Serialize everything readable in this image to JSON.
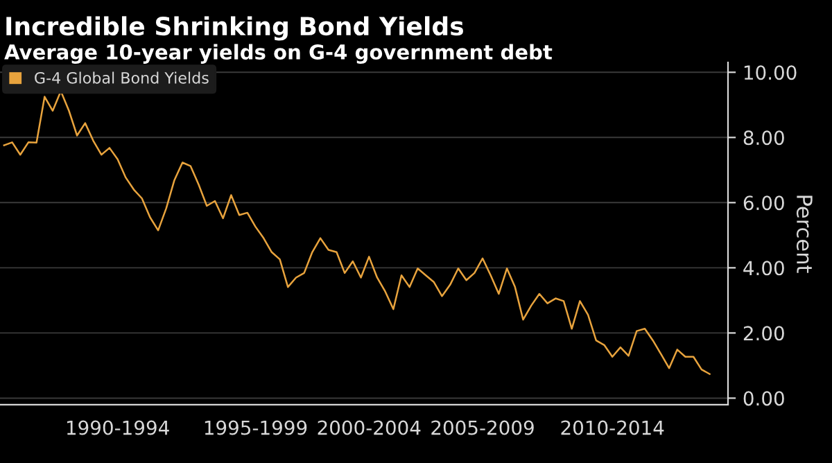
{
  "chart_data": {
    "type": "line",
    "title": "Incredible Shrinking Bond Yields",
    "subtitle": "Average 10-year yields on G-4 government debt",
    "ylabel": "Percent",
    "categories": [
      null,
      null,
      null,
      null,
      null,
      null,
      null,
      null,
      null,
      null,
      null,
      null,
      null,
      null,
      "1990-1994",
      null,
      null,
      null,
      null,
      null,
      null,
      null,
      null,
      null,
      null,
      null,
      null,
      null,
      null,
      null,
      null,
      "1995-1999",
      null,
      null,
      null,
      null,
      null,
      null,
      null,
      null,
      null,
      null,
      null,
      null,
      null,
      "2000-2004",
      null,
      null,
      null,
      null,
      null,
      null,
      null,
      null,
      null,
      null,
      null,
      null,
      null,
      "2005-2009",
      null,
      null,
      null,
      null,
      null,
      null,
      null,
      null,
      null,
      null,
      null,
      null,
      null,
      null,
      null,
      "2010-2014",
      null,
      null,
      null,
      null,
      null,
      null,
      null,
      null,
      null,
      null,
      null,
      null
    ],
    "series": [
      {
        "name": "G-4 Global Bond Yields",
        "color": "#e8a33d",
        "values": [
          7.76,
          7.85,
          7.47,
          7.85,
          7.84,
          9.25,
          8.82,
          9.42,
          8.82,
          8.06,
          8.44,
          7.9,
          7.47,
          7.68,
          7.33,
          6.77,
          6.4,
          6.13,
          5.55,
          5.15,
          5.83,
          6.69,
          7.23,
          7.12,
          6.55,
          5.9,
          6.05,
          5.52,
          6.23,
          5.62,
          5.69,
          5.26,
          4.91,
          4.48,
          4.26,
          3.41,
          3.7,
          3.84,
          4.48,
          4.91,
          4.55,
          4.48,
          3.84,
          4.2,
          3.7,
          4.34,
          3.7,
          3.27,
          2.73,
          3.77,
          3.41,
          3.98,
          3.77,
          3.56,
          3.13,
          3.48,
          3.98,
          3.62,
          3.84,
          4.29,
          3.77,
          3.2,
          3.98,
          3.41,
          2.41,
          2.84,
          3.2,
          2.91,
          3.06,
          2.98,
          2.13,
          2.98,
          2.56,
          1.77,
          1.63,
          1.27,
          1.56,
          1.3,
          2.06,
          2.13,
          1.77,
          1.35,
          0.92,
          1.49,
          1.27,
          1.27,
          0.88,
          0.74
        ]
      }
    ],
    "ylim": [
      -0.2,
      10.3
    ],
    "yticks": [
      {
        "value": 0,
        "label": "0.00"
      },
      {
        "value": 2,
        "label": "2.00"
      },
      {
        "value": 4,
        "label": "4.00"
      },
      {
        "value": 6,
        "label": "6.00"
      },
      {
        "value": 8,
        "label": "8.00"
      },
      {
        "value": 10,
        "label": "10.00"
      }
    ],
    "grid": "y",
    "legend": "top left",
    "line_style": "solid",
    "marker": "none"
  }
}
